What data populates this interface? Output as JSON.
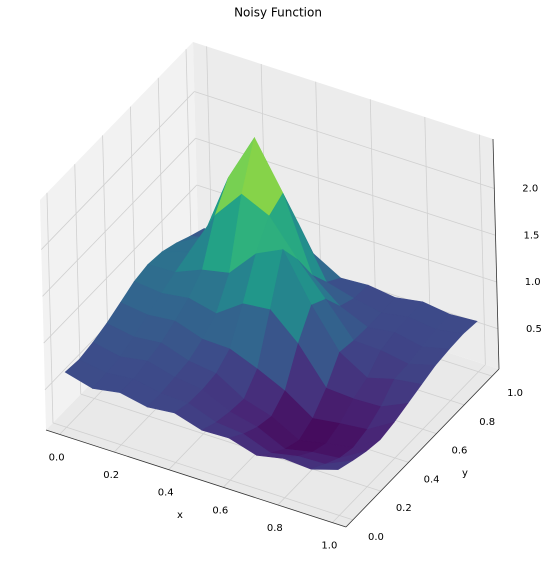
{
  "chart_data": {
    "type": "surface",
    "title": "Noisy Function",
    "xlabel": "x",
    "ylabel": "y",
    "colormap": "viridis",
    "grid": true,
    "x": [
      0,
      0.1,
      0.2,
      0.3,
      0.4,
      0.5,
      0.6,
      0.7,
      0.8,
      0.9,
      1
    ],
    "y": [
      0,
      0.1,
      0.2,
      0.3,
      0.4,
      0.5,
      0.6,
      0.7,
      0.8,
      0.9,
      1
    ],
    "z": [
      [
        0.66,
        0.58,
        0.63,
        0.57,
        0.6,
        0.51,
        0.52,
        0.43,
        0.49,
        0.47,
        0.56
      ],
      [
        0.64,
        0.59,
        0.62,
        0.56,
        0.55,
        0.44,
        0.41,
        0.3,
        0.36,
        0.37,
        0.5
      ],
      [
        0.67,
        0.61,
        0.66,
        0.58,
        0.54,
        0.4,
        0.33,
        0.19,
        0.25,
        0.28,
        0.45
      ],
      [
        0.72,
        0.67,
        0.7,
        0.6,
        0.56,
        0.38,
        0.29,
        0.13,
        0.19,
        0.24,
        0.42
      ],
      [
        0.79,
        0.75,
        0.78,
        0.68,
        0.67,
        0.55,
        0.41,
        0.21,
        0.25,
        0.28,
        0.45
      ],
      [
        0.86,
        0.83,
        0.87,
        0.8,
        1.0,
        1.03,
        0.76,
        0.38,
        0.36,
        0.37,
        0.5
      ],
      [
        0.89,
        0.9,
        1.02,
        1.08,
        1.38,
        1.52,
        1.02,
        0.61,
        0.43,
        0.51,
        0.55
      ],
      [
        0.87,
        0.96,
        1.45,
        1.77,
        1.63,
        1.26,
        0.93,
        0.58,
        0.57,
        0.52,
        0.6
      ],
      [
        0.81,
        0.97,
        1.7,
        2.22,
        1.72,
        0.94,
        0.7,
        0.57,
        0.61,
        0.55,
        0.62
      ],
      [
        0.73,
        0.8,
        1.31,
        1.6,
        1.25,
        0.71,
        0.63,
        0.57,
        0.62,
        0.58,
        0.63
      ],
      [
        0.66,
        0.64,
        0.8,
        0.82,
        0.77,
        0.6,
        0.62,
        0.58,
        0.63,
        0.59,
        0.61
      ]
    ],
    "xlim": [
      -0.05,
      1.05
    ],
    "ylim": [
      -0.05,
      1.05
    ],
    "zlim": [
      0.07,
      2.53
    ],
    "xticks": [
      {
        "value": 0,
        "label": "0.0"
      },
      {
        "value": 0.2,
        "label": "0.2"
      },
      {
        "value": 0.4,
        "label": "0.4"
      },
      {
        "value": 0.6,
        "label": "0.6"
      },
      {
        "value": 0.8,
        "label": "0.8"
      },
      {
        "value": 1,
        "label": "1.0"
      }
    ],
    "yticks": [
      {
        "value": 0,
        "label": "0.0"
      },
      {
        "value": 0.2,
        "label": "0.2"
      },
      {
        "value": 0.4,
        "label": "0.4"
      },
      {
        "value": 0.6,
        "label": "0.6"
      },
      {
        "value": 0.8,
        "label": "0.8"
      },
      {
        "value": 1,
        "label": "1.0"
      }
    ],
    "zticks": [
      0.5,
      {
        "value": 1,
        "label": "1.0"
      },
      1.5,
      {
        "value": 2,
        "label": "2.0"
      }
    ]
  }
}
